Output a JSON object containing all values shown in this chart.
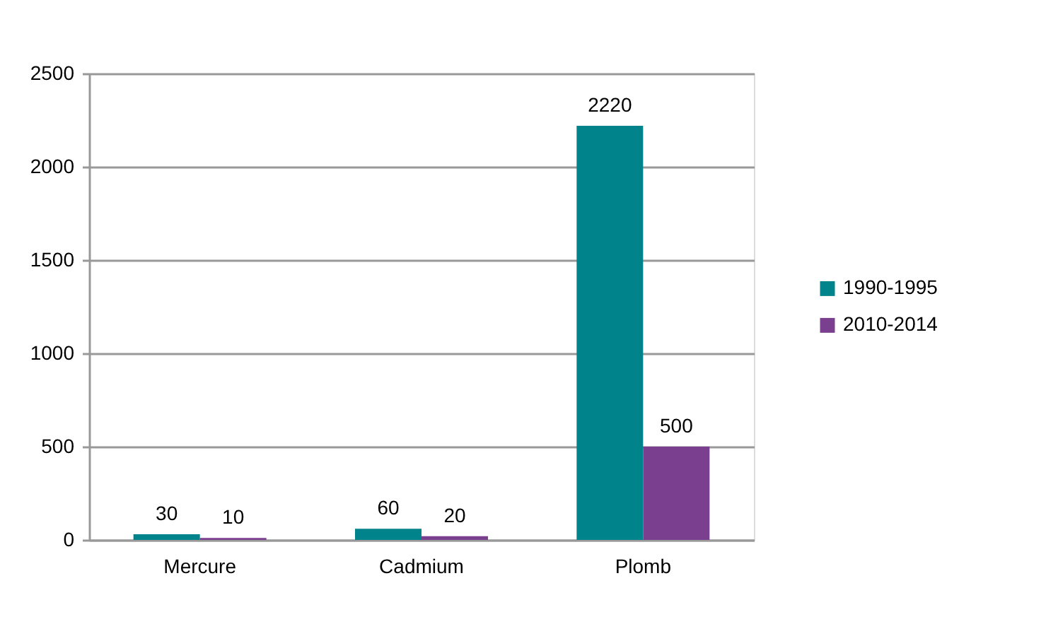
{
  "chart_data": {
    "type": "bar",
    "categories": [
      "Mercure",
      "Cadmium",
      "Plomb"
    ],
    "series": [
      {
        "name": "1990-1995",
        "color": "#00838a",
        "values": [
          30,
          60,
          2220
        ]
      },
      {
        "name": "2010-2014",
        "color": "#7b3f8f",
        "values": [
          10,
          20,
          500
        ]
      }
    ],
    "ylim": [
      0,
      2500
    ],
    "yticks": [
      0,
      500,
      1000,
      1500,
      2000,
      2500
    ],
    "grid": "y",
    "legend": "right",
    "data_labels": true
  }
}
